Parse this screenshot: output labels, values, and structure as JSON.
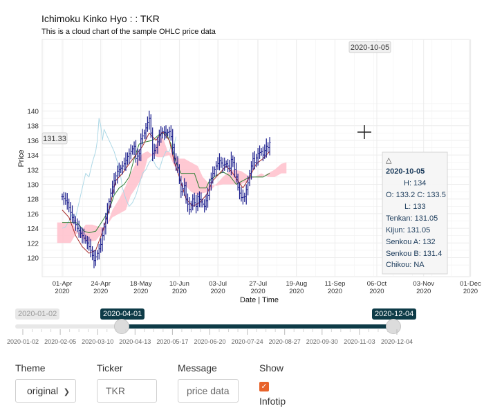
{
  "chart_data": {
    "type": "line",
    "title": "Ichimoku Kinko Hyo : : TKR",
    "subtitle": "This is a cloud chart of the sample OHLC price data",
    "xlabel": "Date | Time",
    "ylabel": "Price",
    "ylim": [
      118.5,
      141
    ],
    "y_ticks": [
      120,
      122,
      124,
      126,
      128,
      130,
      132,
      134,
      136,
      138,
      140
    ],
    "x_ticks": [
      "01-Apr 2020",
      "24-Apr 2020",
      "18-May 2020",
      "10-Jun 2020",
      "03-Jul 2020",
      "27-Jul 2020",
      "19-Aug 2020",
      "11-Sep 2020",
      "06-Oct 2020",
      "03-Nov 2020",
      "01-Dec 2020"
    ],
    "grid": true,
    "crosshair": {
      "date": "2020-10-05",
      "price": "131.33"
    },
    "price": {
      "color": "#1a1d8c",
      "points": [
        [
          0,
          128.3
        ],
        [
          3,
          127.5
        ],
        [
          6,
          125.5
        ],
        [
          9,
          124.0
        ],
        [
          12,
          123.0
        ],
        [
          15,
          122.0
        ],
        [
          17,
          121.0
        ],
        [
          19,
          119.6
        ],
        [
          21,
          120.6
        ],
        [
          23,
          121.8
        ],
        [
          25,
          124.2
        ],
        [
          27,
          126.5
        ],
        [
          29,
          128.8
        ],
        [
          31,
          130.5
        ],
        [
          33,
          131.8
        ],
        [
          35,
          132.2
        ],
        [
          37,
          132.8
        ],
        [
          39,
          133.8
        ],
        [
          41,
          134.5
        ],
        [
          43,
          135.2
        ],
        [
          44,
          133.5
        ],
        [
          46,
          134.2
        ],
        [
          47,
          136.2
        ],
        [
          49,
          137.0
        ],
        [
          51,
          138.4
        ],
        [
          52,
          139.0
        ],
        [
          53,
          137.0
        ],
        [
          54,
          134.2
        ],
        [
          56,
          135.0
        ],
        [
          58,
          136.6
        ],
        [
          60,
          137.2
        ],
        [
          62,
          137.0
        ],
        [
          64,
          137.2
        ],
        [
          65,
          136.5
        ],
        [
          67,
          133.5
        ],
        [
          69,
          132.3
        ],
        [
          70,
          130.5
        ],
        [
          71,
          129.0
        ],
        [
          73,
          129.8
        ],
        [
          74,
          128.0
        ],
        [
          76,
          126.6
        ],
        [
          78,
          128.0
        ],
        [
          80,
          127.0
        ],
        [
          81,
          128.3
        ],
        [
          83,
          127.6
        ],
        [
          85,
          127.0
        ],
        [
          87,
          128.5
        ],
        [
          88,
          130.2
        ],
        [
          90,
          131.5
        ],
        [
          92,
          132.5
        ],
        [
          94,
          133.2
        ],
        [
          96,
          132.6
        ],
        [
          98,
          132.8
        ],
        [
          100,
          132.2
        ],
        [
          101,
          133.4
        ],
        [
          102,
          133.0
        ],
        [
          104,
          131.0
        ],
        [
          105,
          129.6
        ],
        [
          106,
          128.8
        ],
        [
          107,
          128.2
        ],
        [
          109,
          128.3
        ],
        [
          111,
          130.2
        ],
        [
          112,
          131.5
        ],
        [
          114,
          133.5
        ],
        [
          115,
          133.0
        ],
        [
          117,
          134.2
        ],
        [
          119,
          134.5
        ],
        [
          120,
          134.0
        ],
        [
          122,
          135.2
        ],
        [
          123,
          135.0
        ],
        [
          124,
          135.7
        ]
      ]
    },
    "tenkan": {
      "color": "#a52a2a",
      "points": [
        [
          0,
          126.5
        ],
        [
          4,
          125.5
        ],
        [
          8,
          123.0
        ],
        [
          12,
          121.5
        ],
        [
          16,
          120.6
        ],
        [
          20,
          121.0
        ],
        [
          24,
          123.5
        ],
        [
          28,
          126.5
        ],
        [
          32,
          130.5
        ],
        [
          36,
          131.5
        ],
        [
          40,
          132.8
        ],
        [
          44,
          134.0
        ],
        [
          48,
          135.2
        ],
        [
          52,
          137.0
        ],
        [
          56,
          136.0
        ],
        [
          60,
          137.2
        ],
        [
          64,
          136.0
        ],
        [
          67,
          133.0
        ],
        [
          70,
          131.0
        ],
        [
          74,
          128.0
        ],
        [
          78,
          127.0
        ],
        [
          82,
          127.5
        ],
        [
          86,
          128.5
        ],
        [
          90,
          130.5
        ],
        [
          94,
          131.5
        ],
        [
          98,
          132.5
        ],
        [
          101,
          131.8
        ],
        [
          104,
          130.8
        ],
        [
          108,
          129.5
        ],
        [
          112,
          131.0
        ],
        [
          116,
          132.8
        ],
        [
          120,
          133.5
        ],
        [
          124,
          134.5
        ]
      ]
    },
    "kijun": {
      "color": "#2e7d32",
      "points": [
        [
          0,
          124.8
        ],
        [
          6,
          124.8
        ],
        [
          8,
          124.8
        ],
        [
          10,
          124.5
        ],
        [
          13,
          123.6
        ],
        [
          16,
          123.4
        ],
        [
          20,
          123.6
        ],
        [
          24,
          125.0
        ],
        [
          28,
          126.5
        ],
        [
          31,
          128.5
        ],
        [
          34,
          129.5
        ],
        [
          37,
          130.0
        ],
        [
          40,
          131.0
        ],
        [
          43,
          133.5
        ],
        [
          46,
          135.5
        ],
        [
          50,
          135.8
        ],
        [
          54,
          136.0
        ],
        [
          58,
          136.8
        ],
        [
          62,
          137.0
        ],
        [
          65,
          135.5
        ],
        [
          68,
          133.0
        ],
        [
          71,
          131.5
        ],
        [
          74,
          131.5
        ],
        [
          79,
          131.5
        ],
        [
          82,
          129.5
        ],
        [
          86,
          129.5
        ],
        [
          88,
          130.5
        ],
        [
          92,
          131.2
        ],
        [
          96,
          131.7
        ],
        [
          100,
          131.2
        ],
        [
          104,
          130.0
        ],
        [
          108,
          130.5
        ],
        [
          112,
          131.0
        ],
        [
          116,
          131.0
        ],
        [
          120,
          131.0
        ],
        [
          124,
          131.5
        ]
      ]
    },
    "chikou": {
      "color": "#add8e6",
      "points": [
        [
          0,
          124.0
        ],
        [
          2,
          124.2
        ],
        [
          4,
          125.0
        ],
        [
          6,
          126.0
        ],
        [
          8,
          125.5
        ],
        [
          10,
          127.5
        ],
        [
          12,
          129.5
        ],
        [
          14,
          131.5
        ],
        [
          16,
          131.0
        ],
        [
          18,
          133.0
        ],
        [
          20,
          134.5
        ],
        [
          21,
          136.0
        ],
        [
          22,
          139.0
        ],
        [
          23,
          138.0
        ],
        [
          24,
          136.0
        ],
        [
          25,
          137.5
        ],
        [
          27,
          136.5
        ],
        [
          29,
          135.5
        ],
        [
          31,
          134.5
        ],
        [
          33,
          133.0
        ],
        [
          35,
          131.0
        ],
        [
          36,
          129.5
        ],
        [
          38,
          128.0
        ],
        [
          40,
          127.0
        ],
        [
          42,
          127.5
        ],
        [
          44,
          128.5
        ],
        [
          46,
          130.0
        ],
        [
          48,
          131.5
        ],
        [
          50,
          132.0
        ],
        [
          52,
          133.0
        ],
        [
          54,
          133.5
        ],
        [
          56,
          132.5
        ],
        [
          58,
          132.0
        ],
        [
          60,
          133.5
        ],
        [
          62,
          134.5
        ],
        [
          64,
          134.5
        ],
        [
          65,
          135.2
        ],
        [
          67,
          135.5
        ],
        [
          68,
          136.5
        ]
      ]
    },
    "senkou_a": [
      [
        -3,
        124.8
      ],
      [
        0,
        124.8
      ],
      [
        6,
        124.8
      ],
      [
        10,
        123.0
      ],
      [
        14,
        122.2
      ],
      [
        20,
        122.3
      ],
      [
        26,
        124.0
      ],
      [
        30,
        126.5
      ],
      [
        34,
        128.0
      ],
      [
        38,
        129.8
      ],
      [
        41,
        131.5
      ],
      [
        45,
        133.3
      ],
      [
        48,
        134.2
      ],
      [
        51,
        134.5
      ],
      [
        54,
        134.0
      ],
      [
        57,
        133.7
      ],
      [
        60,
        133.7
      ],
      [
        64,
        134.0
      ],
      [
        67,
        132.5
      ],
      [
        70,
        131.7
      ],
      [
        73,
        130.0
      ],
      [
        77,
        129.0
      ],
      [
        81,
        128.5
      ],
      [
        84,
        128.8
      ],
      [
        88,
        129.0
      ],
      [
        92,
        130.0
      ],
      [
        96,
        131.0
      ],
      [
        100,
        131.8
      ],
      [
        103,
        132.0
      ],
      [
        107,
        131.8
      ],
      [
        111,
        131.2
      ],
      [
        115,
        131.0
      ],
      [
        119,
        131.0
      ],
      [
        123,
        131.5
      ],
      [
        127,
        132.0
      ],
      [
        131,
        132.8
      ],
      [
        134,
        133.0
      ]
    ],
    "senkou_b": [
      [
        -3,
        122.0
      ],
      [
        0,
        122.0
      ],
      [
        5,
        122.0
      ],
      [
        8,
        123.2
      ],
      [
        11,
        123.5
      ],
      [
        14,
        124.5
      ],
      [
        18,
        124.5
      ],
      [
        22,
        124.2
      ],
      [
        26,
        124.2
      ],
      [
        30,
        125.5
      ],
      [
        34,
        126.0
      ],
      [
        38,
        126.5
      ],
      [
        41,
        128.5
      ],
      [
        44,
        129.5
      ],
      [
        48,
        131.0
      ],
      [
        51,
        133.5
      ],
      [
        54,
        134.0
      ],
      [
        57,
        136.0
      ],
      [
        60,
        136.5
      ],
      [
        63,
        134.5
      ],
      [
        67,
        134.0
      ],
      [
        70,
        133.5
      ],
      [
        73,
        133.5
      ],
      [
        77,
        133.0
      ],
      [
        81,
        132.5
      ],
      [
        84,
        131.0
      ],
      [
        88,
        130.0
      ],
      [
        92,
        129.8
      ],
      [
        96,
        130.0
      ],
      [
        100,
        130.0
      ],
      [
        103,
        130.0
      ],
      [
        107,
        130.0
      ],
      [
        111,
        130.5
      ],
      [
        115,
        131.0
      ],
      [
        119,
        131.5
      ],
      [
        123,
        131.0
      ],
      [
        127,
        131.0
      ],
      [
        131,
        131.5
      ],
      [
        134,
        131.5
      ]
    ],
    "cloud_color": "#ffc0cb"
  },
  "infotip": {
    "marker": "△",
    "date": "2020-10-05",
    "h": "H: 134",
    "oc": "O: 133.2  C: 133.5",
    "l": "L: 133",
    "tenkan": "Tenkan: 131.05",
    "kijun": "Kijun: 131.05",
    "senkou_a": "Senkou A: 132",
    "senkou_b": "Senkou B: 131.4",
    "chikou": "Chikou: NA"
  },
  "slider": {
    "min_label": "2020-01-02",
    "from_label": "2020-04-01",
    "to_label": "2020-12-04",
    "grid_labels": [
      "2020-01-02",
      "2020-02-05",
      "2020-03-10",
      "2020-04-13",
      "2020-05-17",
      "2020-06-20",
      "2020-07-24",
      "2020-08-27",
      "2020-09-30",
      "2020-11-03",
      "2020-12-04"
    ]
  },
  "controls": {
    "theme_label": "Theme",
    "theme_value": "original",
    "ticker_label": "Ticker",
    "ticker_value": "TKR",
    "message_label": "Message",
    "message_value": "price data",
    "show_label": "Show",
    "infotip_label": "Infotip",
    "infotip_checked": true
  }
}
